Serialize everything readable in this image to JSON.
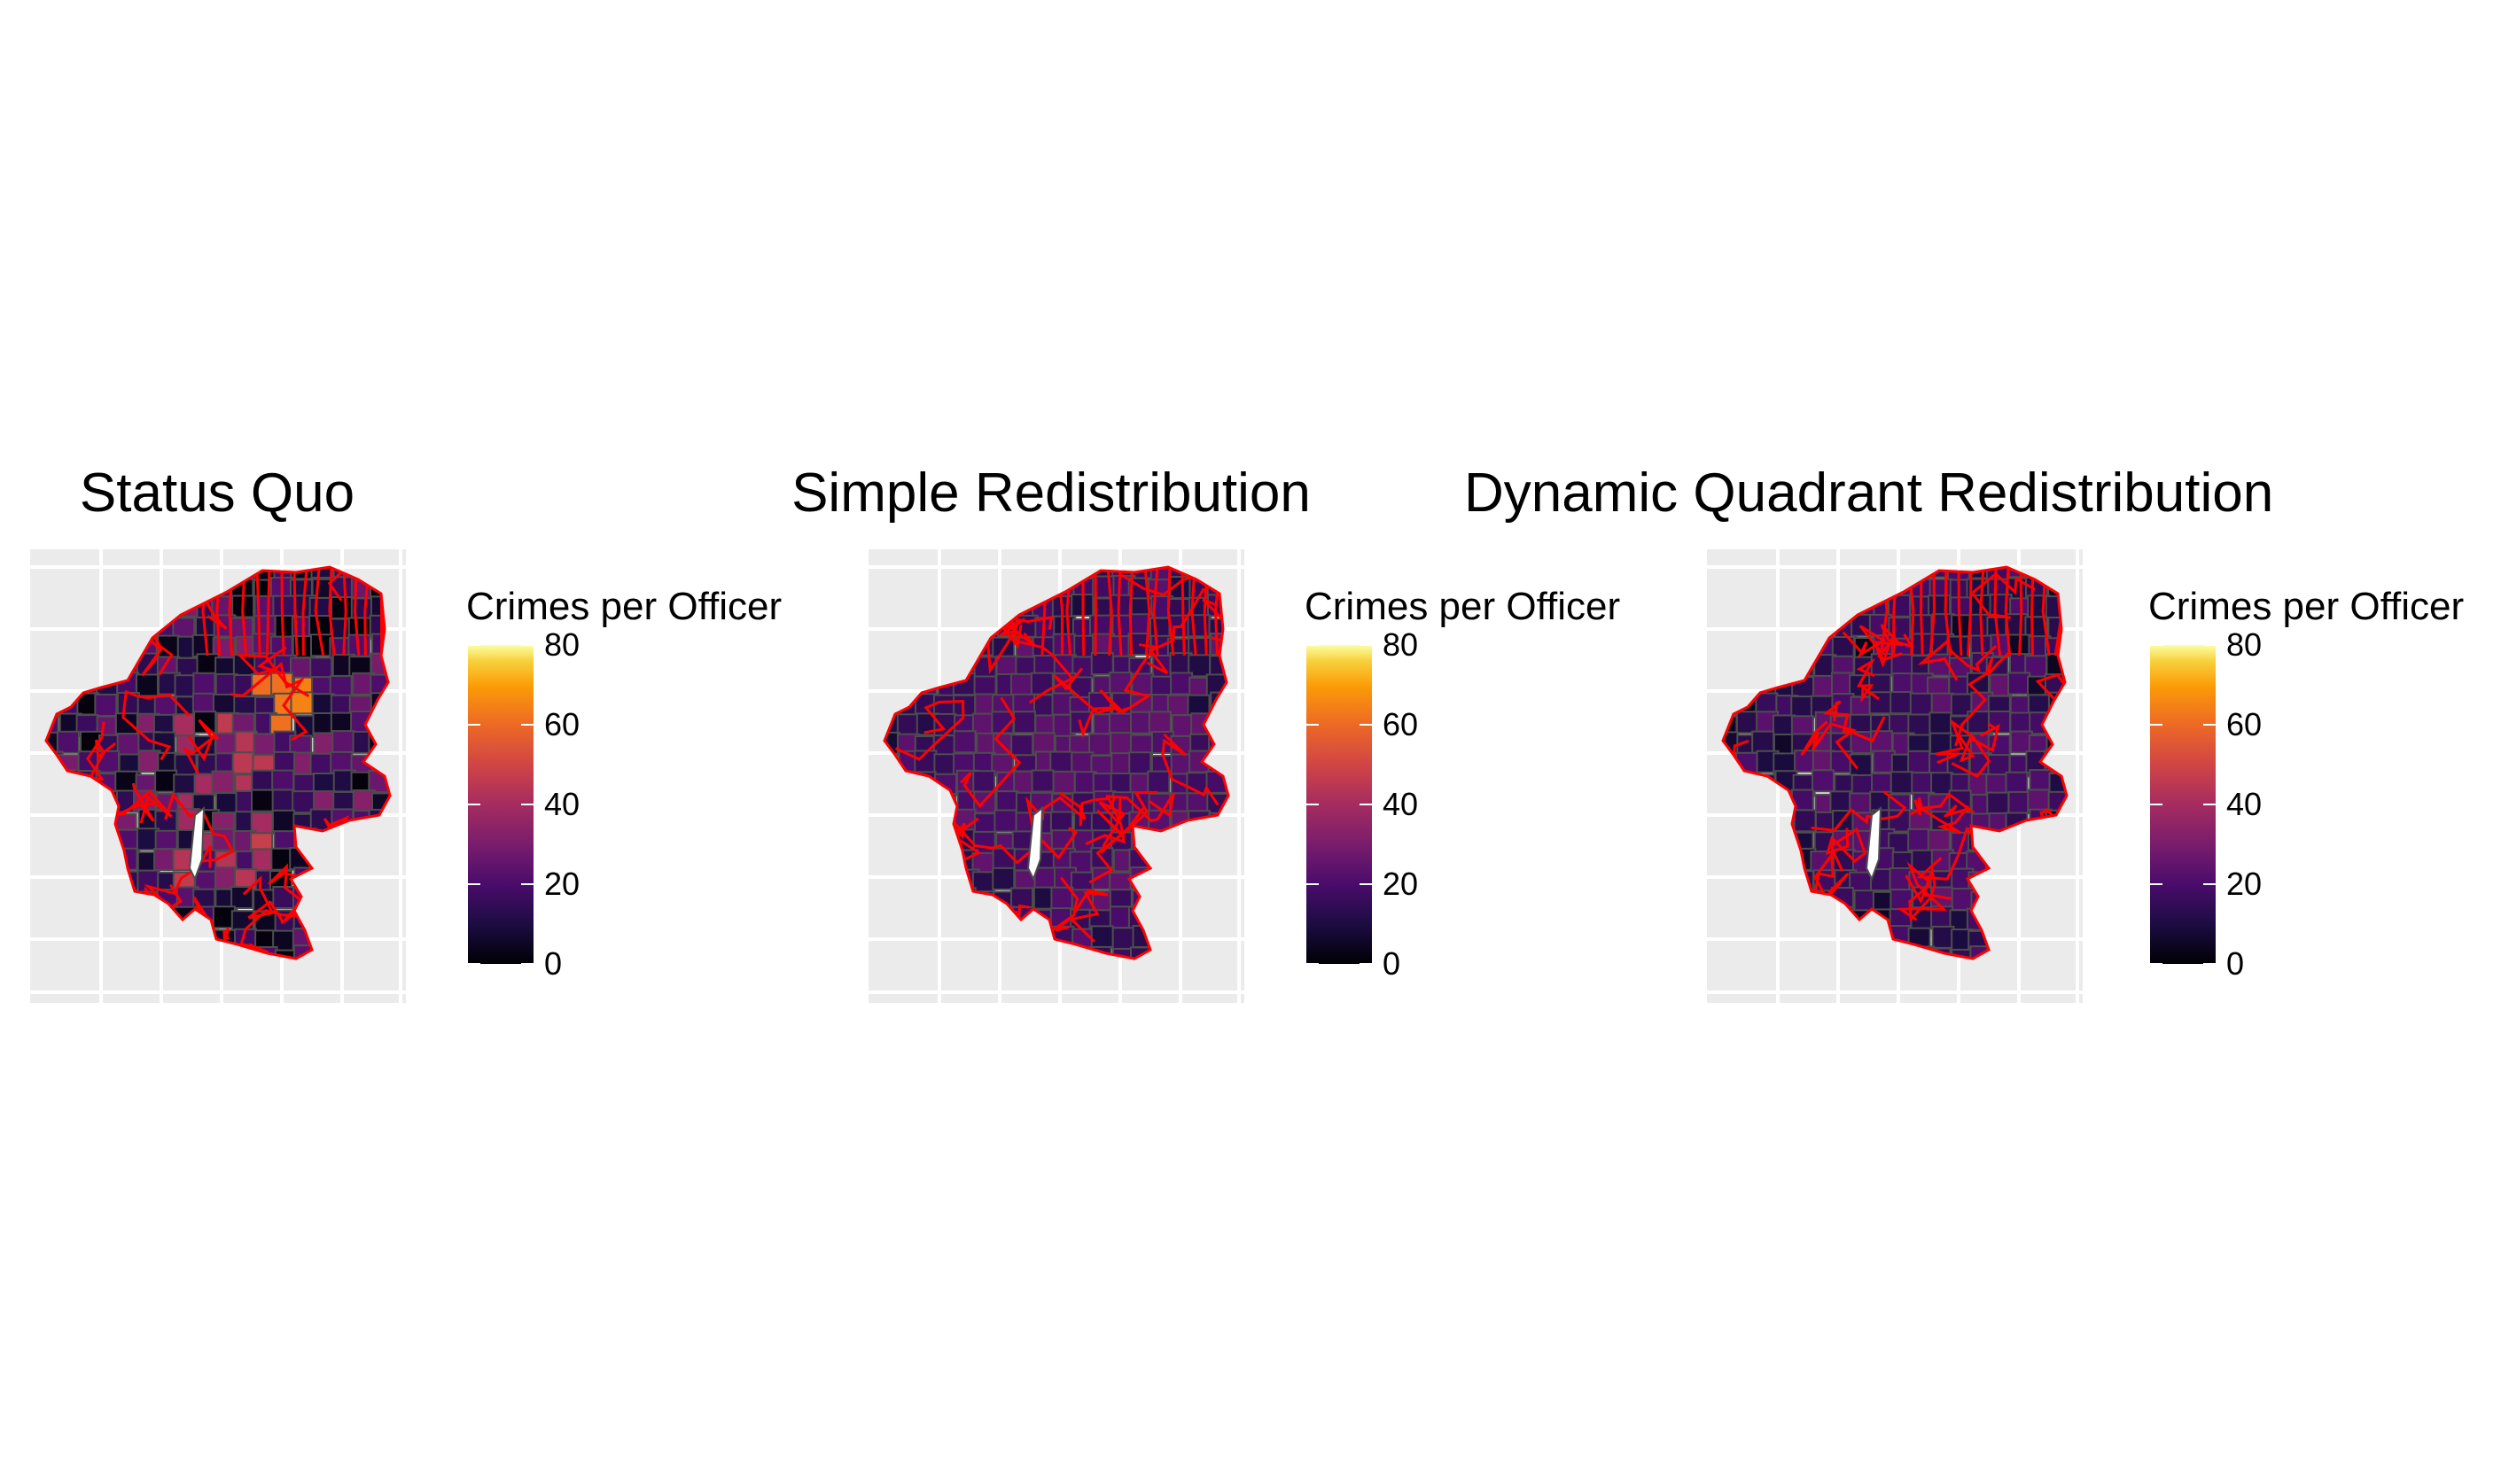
{
  "legend": {
    "title": "Crimes per Officer",
    "ticks": [
      "80",
      "60",
      "40",
      "20",
      "0"
    ],
    "scale_min": 0,
    "scale_max": 80,
    "palette": "inferno"
  },
  "panels": [
    {
      "title": "Status Quo"
    },
    {
      "title": "Simple Redistribution"
    },
    {
      "title": "Dynamic Quadrant Redistribution"
    }
  ],
  "colors": {
    "panel_background": "#ebebeb",
    "grid": "#ffffff",
    "region_fill_base": "#2c1152",
    "inner_border": "#4d4d4d",
    "quadrant_border": "#ff0000"
  }
}
